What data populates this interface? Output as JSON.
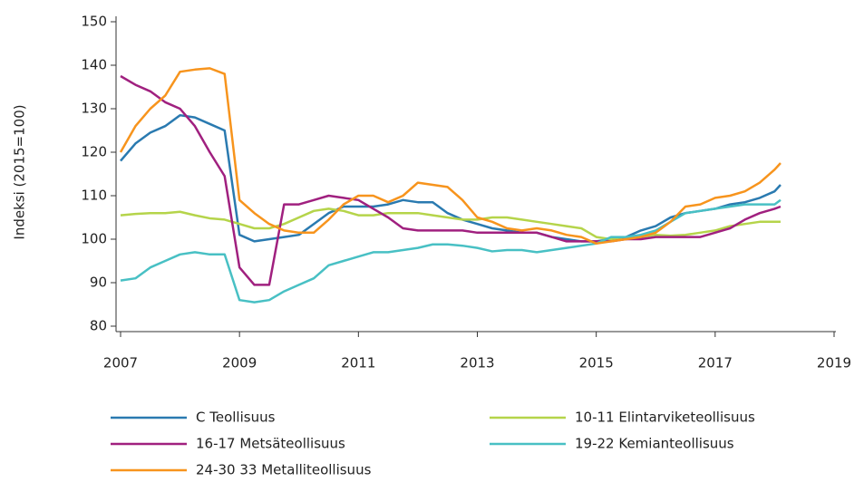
{
  "chart_data": {
    "type": "line",
    "y_label": "Indeksi (2015=100)",
    "x": [
      2007,
      2007.25,
      2007.5,
      2007.75,
      2008,
      2008.25,
      2008.5,
      2008.75,
      2009,
      2009.25,
      2009.5,
      2009.75,
      2010,
      2010.25,
      2010.5,
      2010.75,
      2011,
      2011.25,
      2011.5,
      2011.75,
      2012,
      2012.25,
      2012.5,
      2012.75,
      2013,
      2013.25,
      2013.5,
      2013.75,
      2014,
      2014.25,
      2014.5,
      2014.75,
      2015,
      2015.25,
      2015.5,
      2015.75,
      2016,
      2016.25,
      2016.5,
      2016.75,
      2017,
      2017.25,
      2017.5,
      2017.75,
      2018,
      2018.1
    ],
    "series": [
      {
        "name": "C Teollisuus",
        "color": "#2a7ab0",
        "values": [
          118,
          122,
          124.5,
          126,
          128.5,
          128,
          126.5,
          125,
          101,
          99.5,
          100,
          100.5,
          101,
          103.5,
          106,
          107.5,
          107.5,
          107.5,
          108,
          109,
          108.5,
          108.5,
          106,
          104.5,
          103.5,
          102.5,
          102,
          101.5,
          101.5,
          100.5,
          100,
          99.5,
          99.5,
          100,
          100.5,
          102,
          103,
          105,
          106,
          106.5,
          107,
          108,
          108.5,
          109.5,
          111,
          112.5
        ]
      },
      {
        "name": "10-11 Elintarviketeollisuus",
        "color": "#b5d44a",
        "values": [
          105.5,
          105.8,
          106,
          106,
          106.3,
          105.5,
          104.8,
          104.5,
          103.5,
          102.5,
          102.5,
          103.5,
          105,
          106.5,
          107,
          106.5,
          105.5,
          105.5,
          106,
          106,
          106,
          105.5,
          105,
          104.5,
          104.5,
          105,
          105,
          104.5,
          104,
          103.5,
          103,
          102.5,
          100.5,
          100,
          100,
          100.5,
          101,
          100.8,
          101,
          101.5,
          102,
          103,
          103.5,
          104,
          104,
          104
        ]
      },
      {
        "name": "16-17 Metsäteollisuus",
        "color": "#a0207f",
        "values": [
          137.5,
          135.5,
          134,
          131.5,
          130,
          126,
          120,
          114.5,
          93.5,
          89.5,
          89.5,
          108,
          108,
          109,
          110,
          109.5,
          109,
          107,
          105,
          102.5,
          102,
          102,
          102,
          102,
          101.5,
          101.5,
          101.5,
          101.5,
          101.5,
          100.5,
          99.5,
          99.5,
          99.5,
          99.5,
          100,
          100,
          100.5,
          100.5,
          100.5,
          100.5,
          101.5,
          102.5,
          104.5,
          106,
          107,
          107.5
        ]
      },
      {
        "name": "19-22 Kemianteollisuus",
        "color": "#48c0c4",
        "values": [
          90.5,
          91,
          93.5,
          95,
          96.5,
          97,
          96.5,
          96.5,
          86,
          85.5,
          86,
          88,
          89.5,
          91,
          94,
          95,
          96,
          97,
          97,
          97.5,
          98,
          98.8,
          98.8,
          98.5,
          98,
          97.2,
          97.5,
          97.5,
          97,
          97.5,
          98,
          98.5,
          99,
          100.5,
          100.5,
          101,
          102,
          104,
          106,
          106.5,
          107,
          107.5,
          108,
          108,
          108,
          109
        ]
      },
      {
        "name": "24-30  33 Metalliteollisuus",
        "color": "#f7941d",
        "values": [
          120,
          126,
          130,
          133,
          138.5,
          139,
          139.3,
          138,
          109,
          106,
          103.5,
          102,
          101.5,
          101.5,
          104.5,
          108,
          110,
          110,
          108.5,
          110,
          113,
          112.5,
          112,
          109,
          105,
          104,
          102.5,
          102,
          102.5,
          102,
          101,
          100.5,
          99,
          99.5,
          100,
          100.5,
          101.5,
          104,
          107.5,
          108,
          109.5,
          110,
          111,
          113,
          116,
          117.5
        ]
      }
    ],
    "xlim": [
      2007,
      2019
    ],
    "xticks": [
      2007,
      2009,
      2011,
      2013,
      2015,
      2017,
      2019
    ],
    "ylim": [
      80,
      150
    ],
    "yticks": [
      80,
      90,
      100,
      110,
      120,
      130,
      140,
      150
    ],
    "legend": "bottom"
  }
}
